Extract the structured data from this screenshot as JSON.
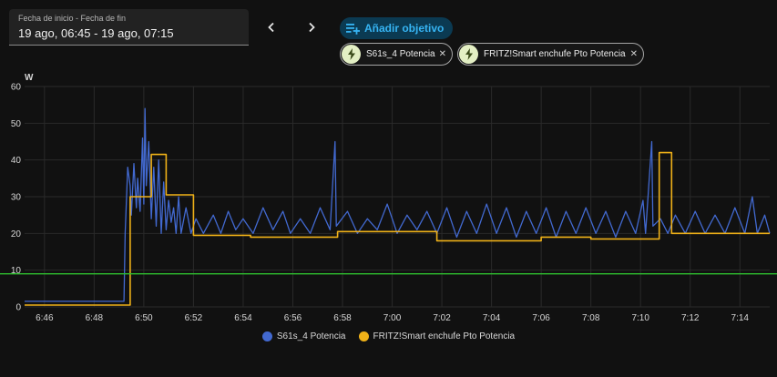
{
  "date_range": {
    "label": "Fecha de inicio - Fecha de fin",
    "value": "19 ago, 06:45 - 19 ago, 07:15"
  },
  "toolbar": {
    "prev_icon": "chevron-left-icon",
    "next_icon": "chevron-right-icon",
    "add_target_label": "Añadir objetivo",
    "add_target_icon": "playlist-plus-icon"
  },
  "targets": [
    {
      "label": "S61s_4 Potencia",
      "icon": "flash-icon"
    },
    {
      "label": "FRITZ!Smart enchufe Pto Potencia",
      "icon": "flash-icon"
    }
  ],
  "colors": {
    "series1": "#4269d0",
    "series2": "#efb118",
    "threshold": "#2fbf2f",
    "grid": "#2a2a2a",
    "chip_icon_bg": "#e3efc4",
    "chip_icon": "#3a4a1a"
  },
  "chart_data": {
    "type": "line",
    "unit": "W",
    "ylim": [
      0,
      60
    ],
    "y_ticks": [
      "0",
      "10",
      "20",
      "30",
      "40",
      "50",
      "60"
    ],
    "x_ticks": [
      "6:46",
      "6:48",
      "6:50",
      "6:52",
      "6:54",
      "6:56",
      "6:58",
      "7:00",
      "7:02",
      "7:04",
      "7:06",
      "7:08",
      "7:10",
      "7:12",
      "7:14"
    ],
    "x_tick_minutes": [
      46,
      48,
      50,
      52,
      54,
      56,
      58,
      60,
      62,
      64,
      66,
      68,
      70,
      72,
      74
    ],
    "xlim_minutes": [
      45.2,
      75.2
    ],
    "x_unit_note": "minutes past 6:00",
    "threshold": 9,
    "grid": true,
    "legend_position": "bottom",
    "series": [
      {
        "name": "S61s_4 Potencia",
        "step": false,
        "points": [
          [
            45.2,
            1.5
          ],
          [
            49.2,
            1.5
          ],
          [
            49.25,
            20
          ],
          [
            49.35,
            38
          ],
          [
            49.45,
            33
          ],
          [
            49.5,
            25
          ],
          [
            49.6,
            39
          ],
          [
            49.7,
            27
          ],
          [
            49.75,
            35
          ],
          [
            49.85,
            26
          ],
          [
            49.95,
            46
          ],
          [
            50.0,
            28
          ],
          [
            50.05,
            54
          ],
          [
            50.1,
            33
          ],
          [
            50.2,
            45
          ],
          [
            50.3,
            24
          ],
          [
            50.4,
            38
          ],
          [
            50.5,
            22
          ],
          [
            50.6,
            40
          ],
          [
            50.7,
            20
          ],
          [
            50.8,
            34
          ],
          [
            50.9,
            21
          ],
          [
            51.0,
            29
          ],
          [
            51.1,
            23
          ],
          [
            51.2,
            27
          ],
          [
            51.3,
            20
          ],
          [
            51.4,
            30
          ],
          [
            51.5,
            20
          ],
          [
            51.7,
            27
          ],
          [
            51.9,
            20
          ],
          [
            52.1,
            24
          ],
          [
            52.4,
            20
          ],
          [
            52.8,
            25
          ],
          [
            53.1,
            20
          ],
          [
            53.4,
            26
          ],
          [
            53.7,
            21
          ],
          [
            54.0,
            24
          ],
          [
            54.4,
            20
          ],
          [
            54.8,
            27
          ],
          [
            55.2,
            21
          ],
          [
            55.6,
            26
          ],
          [
            55.9,
            20
          ],
          [
            56.3,
            24
          ],
          [
            56.7,
            20
          ],
          [
            57.1,
            27
          ],
          [
            57.5,
            21
          ],
          [
            57.7,
            45
          ],
          [
            57.75,
            22
          ],
          [
            58.2,
            26
          ],
          [
            58.6,
            20
          ],
          [
            59.0,
            24
          ],
          [
            59.4,
            21
          ],
          [
            59.8,
            28
          ],
          [
            60.2,
            20
          ],
          [
            60.6,
            25
          ],
          [
            61.0,
            21
          ],
          [
            61.4,
            26
          ],
          [
            61.8,
            20
          ],
          [
            62.2,
            27
          ],
          [
            62.6,
            19
          ],
          [
            63.0,
            26
          ],
          [
            63.4,
            20
          ],
          [
            63.8,
            28
          ],
          [
            64.2,
            20
          ],
          [
            64.6,
            27
          ],
          [
            65.0,
            19
          ],
          [
            65.4,
            26
          ],
          [
            65.8,
            20
          ],
          [
            66.2,
            27
          ],
          [
            66.6,
            19
          ],
          [
            67.0,
            26
          ],
          [
            67.4,
            20
          ],
          [
            67.8,
            27
          ],
          [
            68.2,
            20
          ],
          [
            68.6,
            26
          ],
          [
            69.0,
            19
          ],
          [
            69.4,
            26
          ],
          [
            69.8,
            20
          ],
          [
            70.1,
            29
          ],
          [
            70.2,
            20
          ],
          [
            70.45,
            45
          ],
          [
            70.5,
            22
          ],
          [
            70.8,
            24
          ],
          [
            71.1,
            20
          ],
          [
            71.4,
            25
          ],
          [
            71.8,
            20
          ],
          [
            72.2,
            26
          ],
          [
            72.6,
            20
          ],
          [
            73.0,
            25
          ],
          [
            73.4,
            20
          ],
          [
            73.8,
            27
          ],
          [
            74.2,
            20
          ],
          [
            74.5,
            30
          ],
          [
            74.7,
            20
          ],
          [
            75.0,
            25
          ],
          [
            75.2,
            20
          ]
        ]
      },
      {
        "name": "FRITZ!Smart enchufe Pto Potencia",
        "step": true,
        "points": [
          [
            45.2,
            0.5
          ],
          [
            49.4,
            0.5
          ],
          [
            49.45,
            30
          ],
          [
            50.3,
            41.5
          ],
          [
            50.9,
            30.5
          ],
          [
            52.0,
            19.5
          ],
          [
            54.3,
            19
          ],
          [
            57.8,
            20.5
          ],
          [
            61.8,
            18
          ],
          [
            66.0,
            19
          ],
          [
            68.0,
            18.5
          ],
          [
            70.3,
            18.5
          ],
          [
            70.75,
            42
          ],
          [
            71.25,
            20
          ],
          [
            75.2,
            20
          ]
        ]
      }
    ]
  }
}
